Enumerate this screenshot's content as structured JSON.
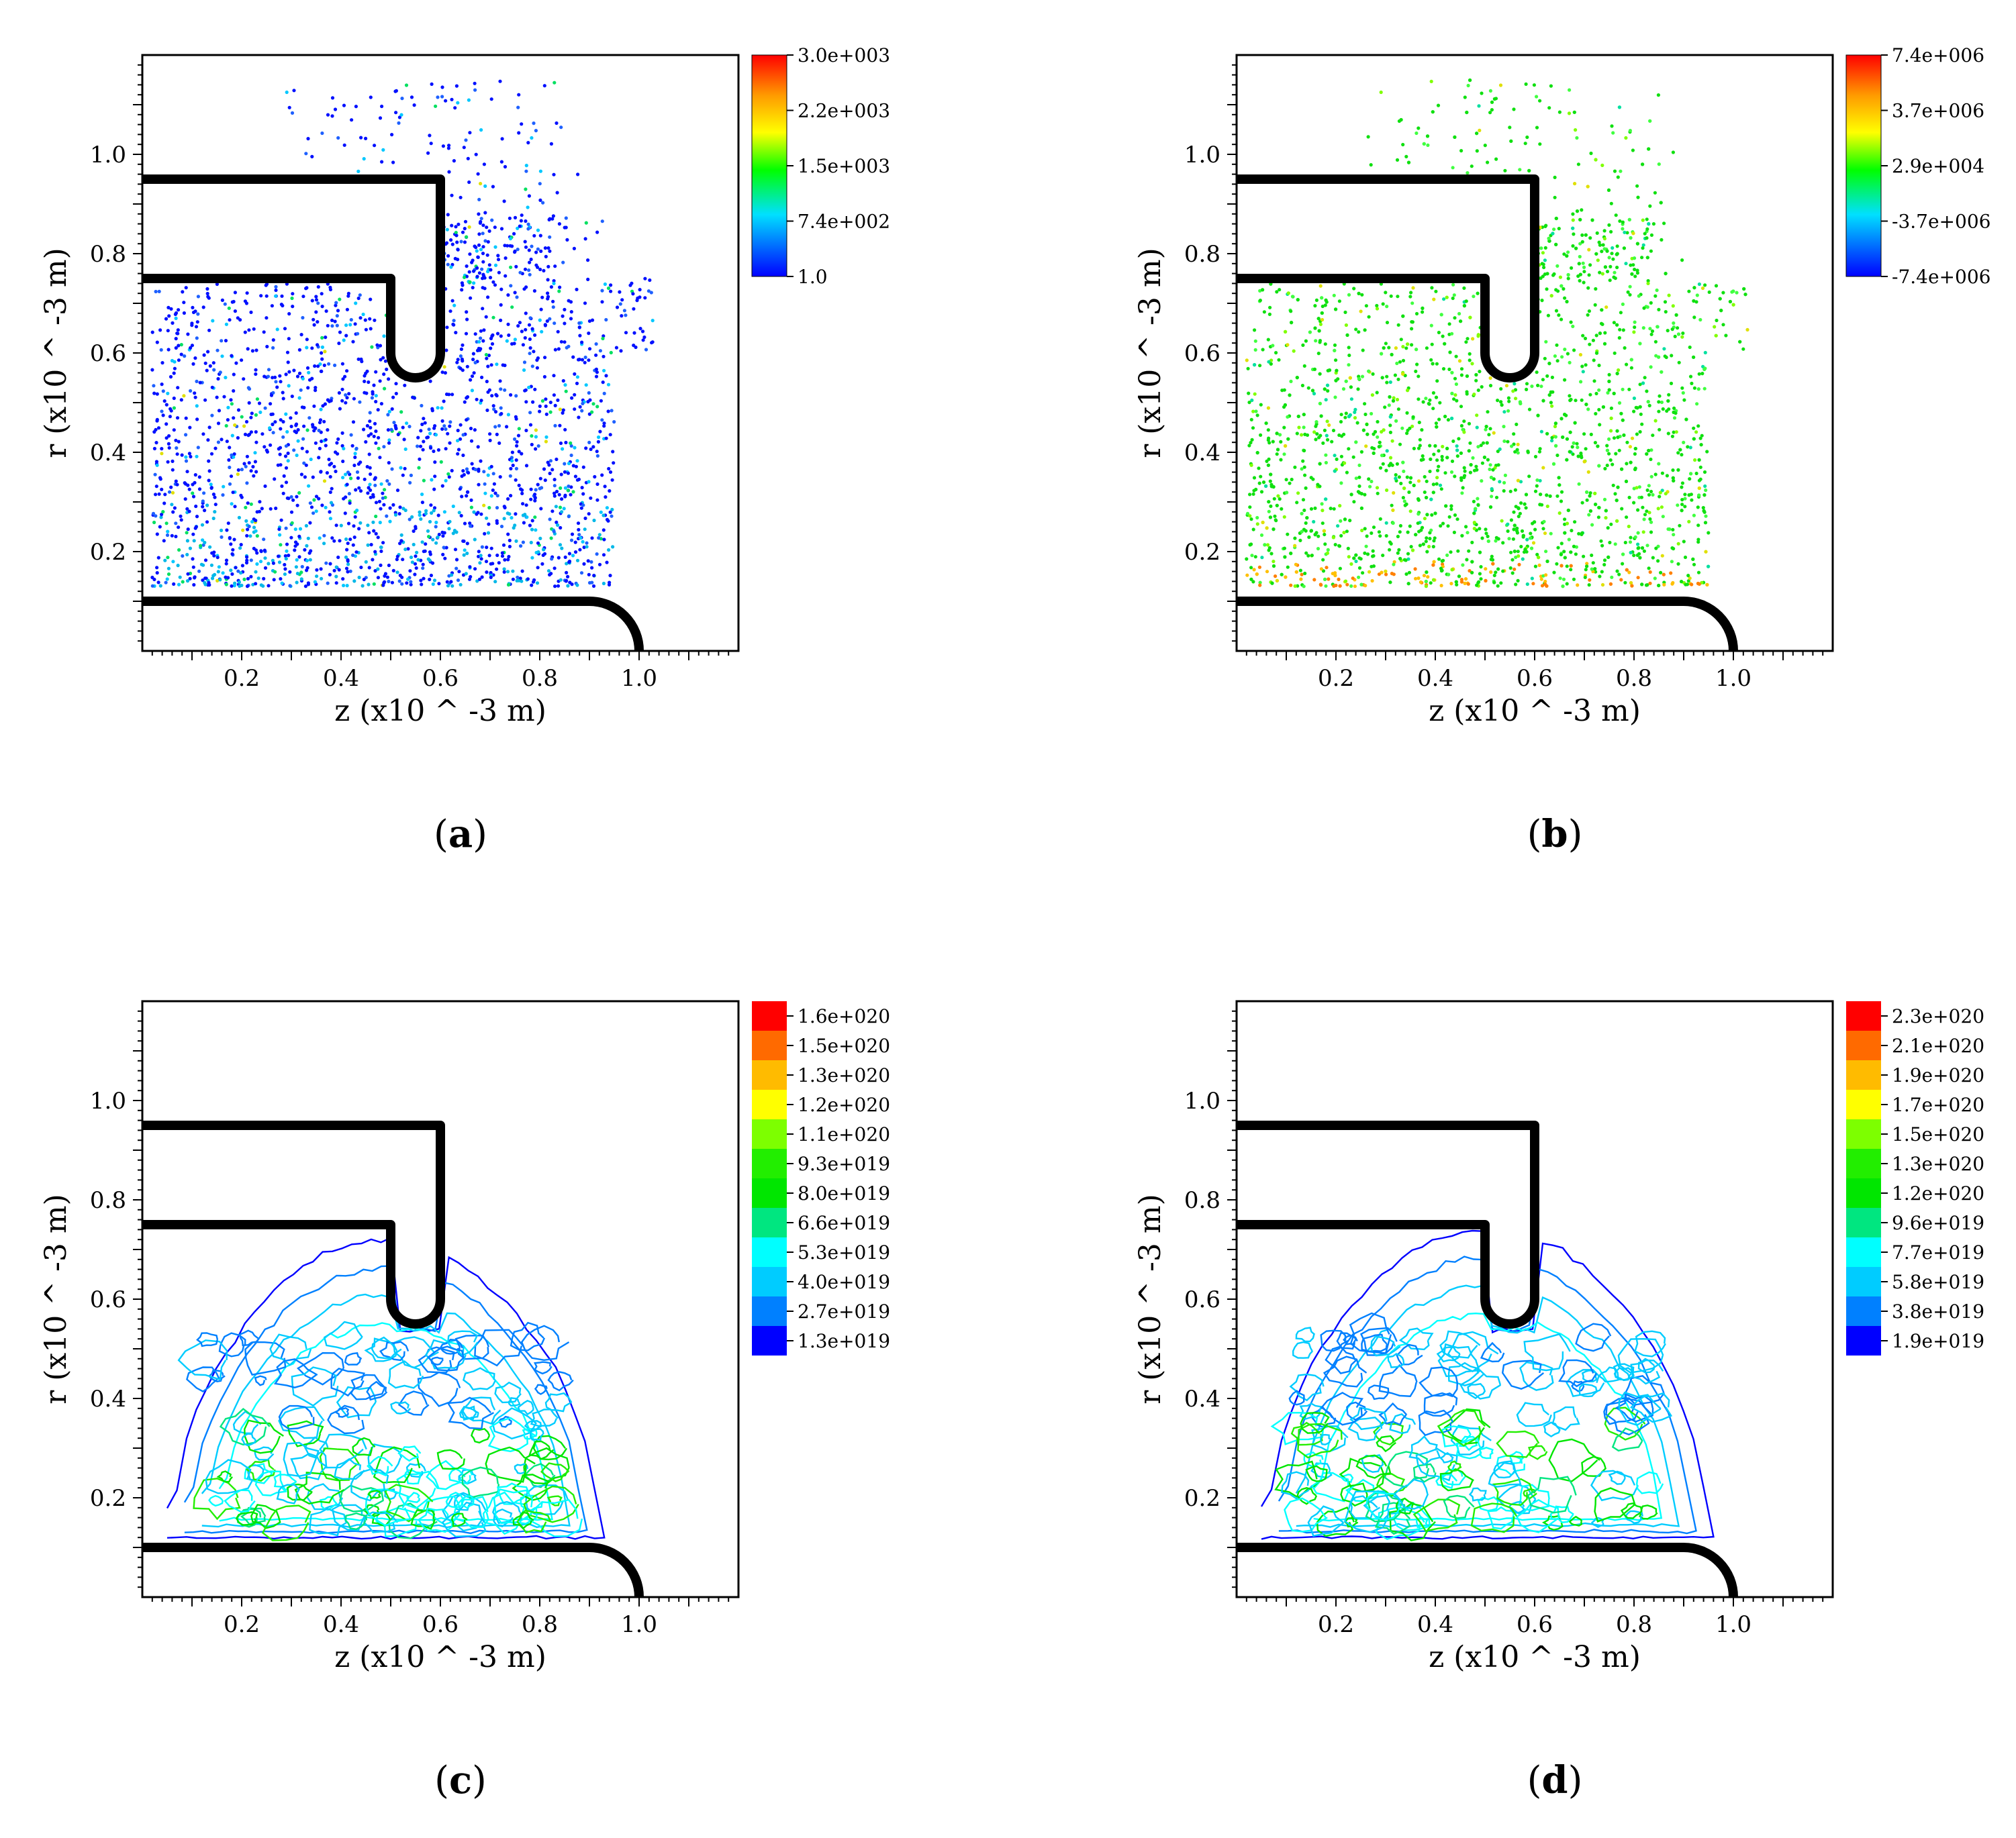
{
  "panels": [
    {
      "caption_open": "(",
      "caption_letter": "a",
      "caption_close": ")",
      "chart_data": {
        "type": "scatter",
        "xlabel": "z (x10 ^ -3 m)",
        "ylabel": "r (x10 ^ -3 m)",
        "xlim": [
          0.0,
          1.2
        ],
        "ylim": [
          0.0,
          1.2
        ],
        "x_ticks": [
          "0.2",
          "0.4",
          "0.6",
          "0.8",
          "1.0"
        ],
        "y_ticks": [
          "0.2",
          "0.4",
          "0.6",
          "0.8",
          "1.0"
        ],
        "colorbar": {
          "style": "continuous",
          "labels": [
            "3.0e+003",
            "2.2e+003",
            "1.5e+003",
            "7.4e+002",
            "1.0"
          ]
        },
        "point_palette": "blue-dominant",
        "points_rendered": 2600
      }
    },
    {
      "caption_open": "(",
      "caption_letter": "b",
      "caption_close": ")",
      "chart_data": {
        "type": "scatter",
        "xlabel": "z (x10 ^ -3 m)",
        "ylabel": "r (x10 ^ -3 m)",
        "xlim": [
          0.0,
          1.2
        ],
        "ylim": [
          0.0,
          1.2
        ],
        "x_ticks": [
          "0.2",
          "0.4",
          "0.6",
          "0.8",
          "1.0"
        ],
        "y_ticks": [
          "0.2",
          "0.4",
          "0.6",
          "0.8",
          "1.0"
        ],
        "colorbar": {
          "style": "continuous",
          "labels": [
            "7.4e+006",
            "3.7e+006",
            "2.9e+004",
            "-3.7e+006",
            "-7.4e+006"
          ]
        },
        "point_palette": "green-dominant",
        "points_rendered": 2600
      }
    },
    {
      "caption_open": "(",
      "caption_letter": "c",
      "caption_close": ")",
      "chart_data": {
        "type": "contour",
        "xlabel": "z (x10 ^ -3 m)",
        "ylabel": "r (x10 ^ -3 m)",
        "xlim": [
          0.0,
          1.2
        ],
        "ylim": [
          0.0,
          1.2
        ],
        "x_ticks": [
          "0.2",
          "0.4",
          "0.6",
          "0.8",
          "1.0"
        ],
        "y_ticks": [
          "0.2",
          "0.4",
          "0.6",
          "0.8",
          "1.0"
        ],
        "colorbar": {
          "style": "discrete",
          "labels": [
            "1.6e+020",
            "1.5e+020",
            "1.3e+020",
            "1.2e+020",
            "1.1e+020",
            "9.3e+019",
            "8.0e+019",
            "6.6e+019",
            "5.3e+019",
            "4.0e+019",
            "2.7e+019",
            "1.3e+019"
          ],
          "colors": [
            "#ff0000",
            "#ff6a00",
            "#ffbb00",
            "#ffff00",
            "#7dff00",
            "#22ee00",
            "#00e600",
            "#00e680",
            "#00ffff",
            "#00ccff",
            "#0080ff",
            "#0000ff"
          ]
        },
        "contour_extent": {
          "z": [
            0.05,
            0.93
          ],
          "r": [
            0.12,
            0.72
          ]
        }
      }
    },
    {
      "caption_open": "(",
      "caption_letter": "d",
      "caption_close": ")",
      "chart_data": {
        "type": "contour",
        "xlabel": "z (x10 ^ -3 m)",
        "ylabel": "r (x10 ^ -3 m)",
        "xlim": [
          0.0,
          1.2
        ],
        "ylim": [
          0.0,
          1.2
        ],
        "x_ticks": [
          "0.2",
          "0.4",
          "0.6",
          "0.8",
          "1.0"
        ],
        "y_ticks": [
          "0.2",
          "0.4",
          "0.6",
          "0.8",
          "1.0"
        ],
        "colorbar": {
          "style": "discrete",
          "labels": [
            "2.3e+020",
            "2.1e+020",
            "1.9e+020",
            "1.7e+020",
            "1.5e+020",
            "1.3e+020",
            "1.2e+020",
            "9.6e+019",
            "7.7e+019",
            "5.8e+019",
            "3.8e+019",
            "1.9e+019"
          ],
          "colors": [
            "#ff0000",
            "#ff6a00",
            "#ffbb00",
            "#ffff00",
            "#7dff00",
            "#22ee00",
            "#00e600",
            "#00e680",
            "#00ffff",
            "#00ccff",
            "#0080ff",
            "#0000ff"
          ]
        },
        "contour_extent": {
          "z": [
            0.05,
            0.96
          ],
          "r": [
            0.12,
            0.74
          ]
        }
      }
    }
  ],
  "geometry_walls": {
    "top_electrode_r": [
      0.75,
      0.95
    ],
    "top_electrode_tip_z": [
      0.5,
      0.6
    ],
    "top_electrode_bottom_r": 0.55,
    "bottom_electrode_r": 0.1,
    "bottom_electrode_end_z": 1.0
  }
}
